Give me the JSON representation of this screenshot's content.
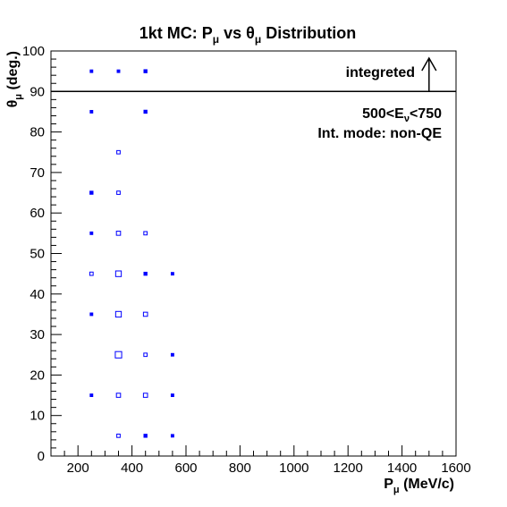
{
  "chart_data": {
    "type": "box-scatter",
    "title": {
      "pre": "1kt MC: P",
      "sub1": "μ",
      "mid": " vs θ",
      "sub2": "μ",
      "post": " Distribution"
    },
    "xlabel": {
      "main": "P",
      "sub": "μ",
      "unit": " (MeV/c)"
    },
    "ylabel": {
      "main": "θ",
      "sub": "μ",
      "unit": " (deg.)"
    },
    "xlim": [
      100,
      1600
    ],
    "ylim": [
      0,
      100
    ],
    "xticks": [
      200,
      400,
      600,
      800,
      1000,
      1200,
      1400,
      1600
    ],
    "yticks": [
      0,
      10,
      20,
      30,
      40,
      50,
      60,
      70,
      80,
      90,
      100
    ],
    "marker_color": "#0000ff",
    "separator_y": 90,
    "integrated_label": "integreted",
    "arrow": {
      "x": 1500,
      "y_from": 90,
      "y_to": 100
    },
    "annotation_energy": {
      "pre": "500<E",
      "sub": "ν",
      "post": "<750"
    },
    "annotation_mode": "Int. mode: non-QE",
    "bins": [
      {
        "x": 250,
        "y": 95,
        "w": 1
      },
      {
        "x": 350,
        "y": 95,
        "w": 1
      },
      {
        "x": 450,
        "y": 95,
        "w": 1.3
      },
      {
        "x": 250,
        "y": 85,
        "w": 1
      },
      {
        "x": 450,
        "y": 85,
        "w": 1.3
      },
      {
        "x": 350,
        "y": 75,
        "w": 1.5
      },
      {
        "x": 250,
        "y": 65,
        "w": 1.3
      },
      {
        "x": 350,
        "y": 65,
        "w": 1.5
      },
      {
        "x": 250,
        "y": 55,
        "w": 1
      },
      {
        "x": 350,
        "y": 55,
        "w": 2
      },
      {
        "x": 450,
        "y": 55,
        "w": 1.5
      },
      {
        "x": 250,
        "y": 45,
        "w": 1.5
      },
      {
        "x": 350,
        "y": 45,
        "w": 3
      },
      {
        "x": 450,
        "y": 45,
        "w": 1.3
      },
      {
        "x": 550,
        "y": 45,
        "w": 1
      },
      {
        "x": 250,
        "y": 35,
        "w": 1
      },
      {
        "x": 350,
        "y": 35,
        "w": 3
      },
      {
        "x": 450,
        "y": 35,
        "w": 2
      },
      {
        "x": 350,
        "y": 25,
        "w": 3.5
      },
      {
        "x": 450,
        "y": 25,
        "w": 1.5
      },
      {
        "x": 550,
        "y": 25,
        "w": 1
      },
      {
        "x": 250,
        "y": 15,
        "w": 1
      },
      {
        "x": 350,
        "y": 15,
        "w": 2
      },
      {
        "x": 450,
        "y": 15,
        "w": 2
      },
      {
        "x": 550,
        "y": 15,
        "w": 1
      },
      {
        "x": 350,
        "y": 5,
        "w": 1.5
      },
      {
        "x": 450,
        "y": 5,
        "w": 1.3
      },
      {
        "x": 550,
        "y": 5,
        "w": 1
      }
    ]
  }
}
